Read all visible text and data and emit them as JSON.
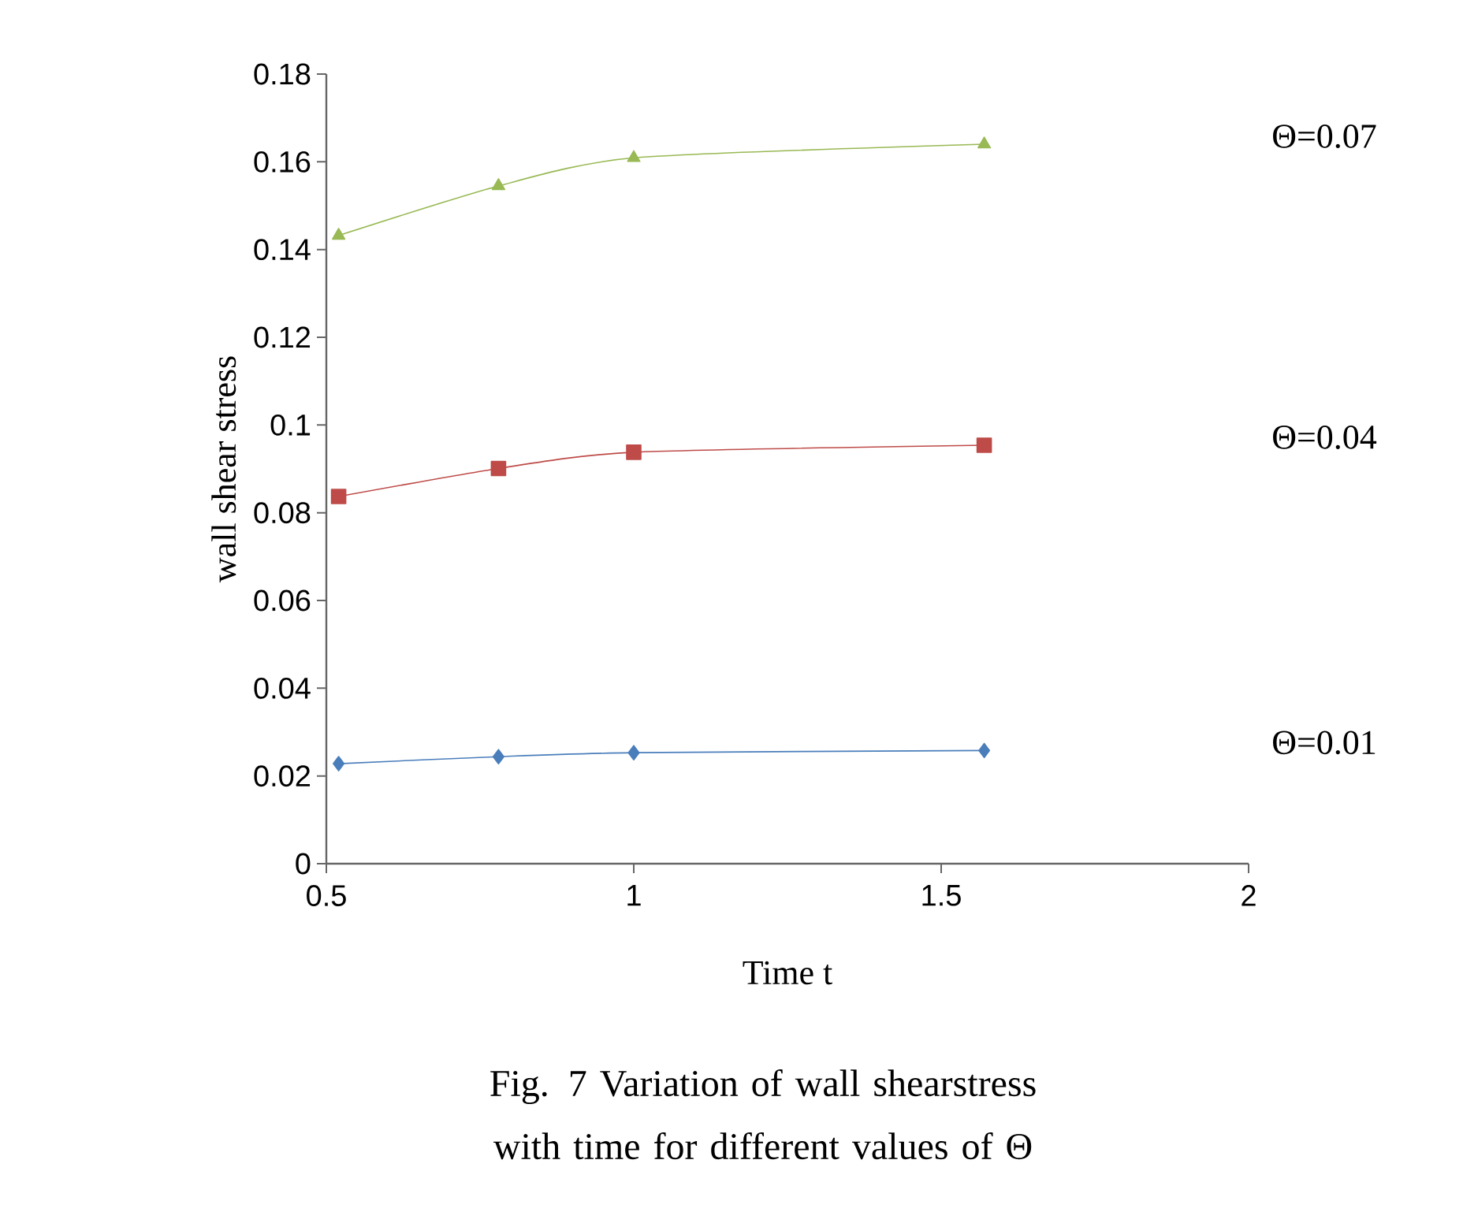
{
  "chart_data": {
    "type": "line",
    "title": "Fig. 7 Variation of wall shearstress with time for different values of Θ",
    "xlabel": "Time t",
    "ylabel": "wall shear stress",
    "xlim": [
      0.5,
      2
    ],
    "xticks": [
      0.5,
      1,
      1.5,
      2
    ],
    "ylim": [
      0,
      0.18
    ],
    "yticks": [
      0,
      0.02,
      0.04,
      0.06,
      0.08,
      0.1,
      0.12,
      0.14,
      0.16,
      0.18
    ],
    "grid": false,
    "legend": false,
    "line_style": "solid",
    "series": [
      {
        "name": "Θ=0.01",
        "color": "#4a7ebb",
        "marker": "diamond",
        "x": [
          0.52,
          0.78,
          1.0,
          1.57
        ],
        "values": [
          0.0228,
          0.0244,
          0.0253,
          0.0258
        ]
      },
      {
        "name": "Θ=0.04",
        "color": "#be4b48",
        "marker": "square",
        "x": [
          0.52,
          0.78,
          1.0,
          1.57
        ],
        "values": [
          0.0837,
          0.0901,
          0.0938,
          0.0954
        ]
      },
      {
        "name": "Θ=0.07",
        "color": "#98b954",
        "marker": "triangle",
        "x": [
          0.52,
          0.78,
          1.0,
          1.57
        ],
        "values": [
          0.1432,
          0.1545,
          0.1609,
          0.164
        ]
      }
    ]
  }
}
